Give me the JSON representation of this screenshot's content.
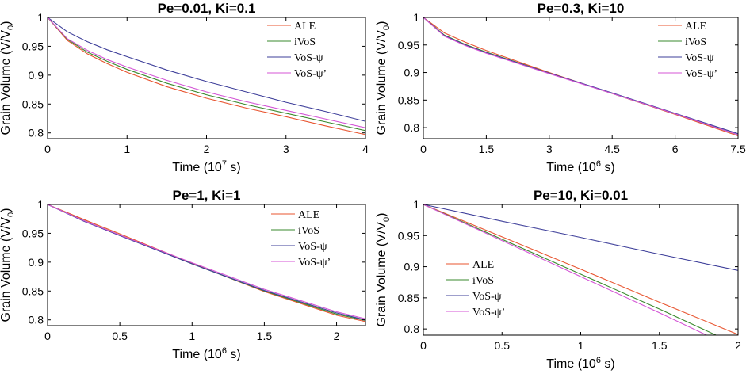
{
  "chart_data": [
    {
      "type": "line",
      "title": "Pe=0.01, Ki=0.1",
      "xlabel": {
        "text": "Time (10",
        "sup": "7",
        "tail": " s)"
      },
      "ylabel": {
        "text": "Grain Volume (V/V",
        "sub": "0",
        "tail": ")"
      },
      "xlim": [
        0,
        4
      ],
      "ylim": [
        0.79,
        1
      ],
      "xticks": [
        0,
        1,
        2,
        3,
        4
      ],
      "xtick_labels": [
        "0",
        "1",
        "2",
        "3",
        "4"
      ],
      "yticks": [
        0.8,
        0.85,
        0.9,
        0.95,
        1
      ],
      "ytick_labels": [
        "0.8",
        "0.85",
        "0.9",
        "0.95",
        "1"
      ],
      "legend_position": "top-right",
      "series": [
        {
          "name": "ALE",
          "color": "#e8542f",
          "x": [
            0,
            0.25,
            0.5,
            0.75,
            1,
            1.5,
            2,
            2.5,
            3,
            3.5,
            4
          ],
          "y": [
            1,
            0.96,
            0.937,
            0.92,
            0.905,
            0.88,
            0.86,
            0.843,
            0.828,
            0.812,
            0.797
          ]
        },
        {
          "name": "iVoS",
          "color": "#3a8a2e",
          "x": [
            0,
            0.25,
            0.5,
            0.75,
            1,
            1.5,
            2,
            2.5,
            3,
            3.5,
            4
          ],
          "y": [
            1,
            0.962,
            0.94,
            0.924,
            0.91,
            0.886,
            0.866,
            0.849,
            0.834,
            0.819,
            0.804
          ]
        },
        {
          "name": "VoS-ψ",
          "color": "#3e3f9a",
          "x": [
            0,
            0.25,
            0.5,
            0.75,
            1,
            1.5,
            2,
            2.5,
            3,
            3.5,
            4
          ],
          "y": [
            1,
            0.975,
            0.958,
            0.944,
            0.932,
            0.909,
            0.889,
            0.871,
            0.853,
            0.837,
            0.82
          ]
        },
        {
          "name": "VoS-ψ’",
          "color": "#d455d6",
          "x": [
            0,
            0.25,
            0.5,
            0.75,
            1,
            1.5,
            2,
            2.5,
            3,
            3.5,
            4
          ],
          "y": [
            1,
            0.963,
            0.943,
            0.927,
            0.914,
            0.891,
            0.871,
            0.854,
            0.839,
            0.824,
            0.809
          ]
        }
      ]
    },
    {
      "type": "line",
      "title": "Pe=0.3, Ki=10",
      "xlabel": {
        "text": "Time (10",
        "sup": "6",
        "tail": " s)"
      },
      "ylabel": {
        "text": "Grain Volume (V/V",
        "sub": "0",
        "tail": ")"
      },
      "xlim": [
        0,
        7.5
      ],
      "ylim": [
        0.78,
        1
      ],
      "xticks": [
        0,
        1.5,
        3,
        4.5,
        6,
        7.5
      ],
      "xtick_labels": [
        "0",
        "1.5",
        "3",
        "4.5",
        "6",
        "7.5"
      ],
      "yticks": [
        0.8,
        0.85,
        0.9,
        0.95,
        1
      ],
      "ytick_labels": [
        "0.8",
        "0.85",
        "0.9",
        "0.95",
        "1"
      ],
      "legend_position": "top-right",
      "series": [
        {
          "name": "ALE",
          "color": "#e8542f",
          "x": [
            0,
            0.5,
            1,
            1.5,
            3,
            4.5,
            6,
            7.5
          ],
          "y": [
            1,
            0.972,
            0.955,
            0.94,
            0.9,
            0.862,
            0.824,
            0.785
          ]
        },
        {
          "name": "iVoS",
          "color": "#3a8a2e",
          "x": [
            0,
            0.5,
            1,
            1.5,
            3,
            4.5,
            6,
            7.5
          ],
          "y": [
            1,
            0.968,
            0.951,
            0.937,
            0.899,
            0.862,
            0.825,
            0.787
          ]
        },
        {
          "name": "VoS-ψ",
          "color": "#3e3f9a",
          "x": [
            0,
            0.5,
            1,
            1.5,
            3,
            4.5,
            6,
            7.5
          ],
          "y": [
            1,
            0.967,
            0.95,
            0.936,
            0.899,
            0.863,
            0.826,
            0.789
          ]
        },
        {
          "name": "VoS-ψ’",
          "color": "#d455d6",
          "x": [
            0,
            0.5,
            1,
            1.5,
            3,
            4.5,
            6,
            7.5
          ],
          "y": [
            1,
            0.966,
            0.949,
            0.935,
            0.898,
            0.862,
            0.825,
            0.787
          ]
        }
      ]
    },
    {
      "type": "line",
      "title": "Pe=1, Ki=1",
      "xlabel": {
        "text": "Time (10",
        "sup": "6",
        "tail": " s)"
      },
      "ylabel": {
        "text": "Grain Volume (V/V",
        "sub": "0",
        "tail": ")"
      },
      "xlim": [
        0,
        2.2
      ],
      "ylim": [
        0.79,
        1
      ],
      "xticks": [
        0,
        0.5,
        1,
        1.5,
        2
      ],
      "xtick_labels": [
        "0",
        "0.5",
        "1",
        "1.5",
        "2"
      ],
      "yticks": [
        0.8,
        0.85,
        0.9,
        0.95,
        1
      ],
      "ytick_labels": [
        "0.8",
        "0.85",
        "0.9",
        "0.95",
        "1"
      ],
      "legend_position": "right",
      "series": [
        {
          "name": "ALE",
          "color": "#e8542f",
          "x": [
            0,
            0.25,
            0.5,
            1,
            1.5,
            2,
            2.2
          ],
          "y": [
            1,
            0.974,
            0.949,
            0.898,
            0.849,
            0.808,
            0.797
          ]
        },
        {
          "name": "iVoS",
          "color": "#3a8a2e",
          "x": [
            0,
            0.25,
            0.5,
            1,
            1.5,
            2,
            2.2
          ],
          "y": [
            1,
            0.972,
            0.947,
            0.897,
            0.85,
            0.81,
            0.799
          ]
        },
        {
          "name": "VoS-ψ",
          "color": "#3e3f9a",
          "x": [
            0,
            0.25,
            0.5,
            1,
            1.5,
            2,
            2.2
          ],
          "y": [
            1,
            0.971,
            0.946,
            0.897,
            0.851,
            0.812,
            0.8
          ]
        },
        {
          "name": "VoS-ψ’",
          "color": "#d455d6",
          "x": [
            0,
            0.25,
            0.5,
            1,
            1.5,
            2,
            2.2
          ],
          "y": [
            1,
            0.972,
            0.947,
            0.899,
            0.853,
            0.814,
            0.802
          ]
        }
      ]
    },
    {
      "type": "line",
      "title": "Pe=10, Ki=0.01",
      "xlabel": {
        "text": "Time (10",
        "sup": "6",
        "tail": " s)"
      },
      "ylabel": {
        "text": "Grain Volume (V/V",
        "sub": "0",
        "tail": ")"
      },
      "xlim": [
        0,
        2
      ],
      "ylim": [
        0.79,
        1
      ],
      "xticks": [
        0,
        0.5,
        1,
        1.5,
        2
      ],
      "xtick_labels": [
        "0",
        "0.5",
        "1",
        "1.5",
        "2"
      ],
      "yticks": [
        0.8,
        0.85,
        0.9,
        0.95,
        1
      ],
      "ytick_labels": [
        "0.8",
        "0.85",
        "0.9",
        "0.95",
        "1"
      ],
      "legend_position": "bottom-left",
      "series": [
        {
          "name": "ALE",
          "color": "#e8542f",
          "x": [
            0,
            0.5,
            1,
            1.5,
            2
          ],
          "y": [
            1,
            0.948,
            0.896,
            0.843,
            0.791
          ]
        },
        {
          "name": "iVoS",
          "color": "#3a8a2e",
          "x": [
            0,
            0.5,
            1,
            1.5,
            1.86
          ],
          "y": [
            1,
            0.944,
            0.888,
            0.832,
            0.79
          ]
        },
        {
          "name": "VoS-ψ",
          "color": "#3e3f9a",
          "x": [
            0,
            0.5,
            1,
            1.5,
            2
          ],
          "y": [
            1,
            0.973,
            0.947,
            0.92,
            0.894
          ]
        },
        {
          "name": "VoS-ψ’",
          "color": "#d455d6",
          "x": [
            0,
            0.5,
            1,
            1.5,
            1.8
          ],
          "y": [
            1,
            0.942,
            0.884,
            0.826,
            0.79
          ]
        }
      ]
    }
  ]
}
